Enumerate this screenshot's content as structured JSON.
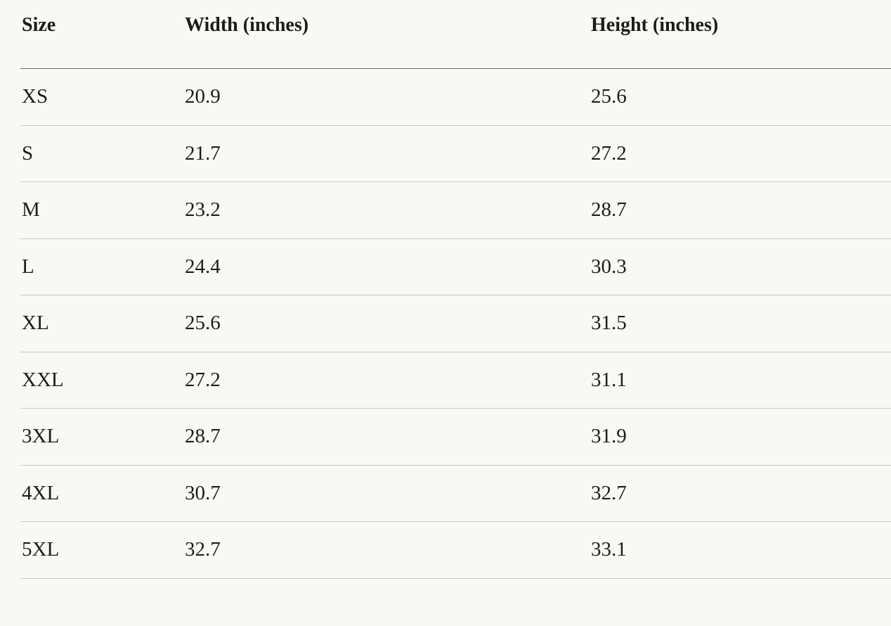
{
  "table": {
    "header": [
      "Size",
      "Width (inches)",
      "Height (inches)"
    ],
    "rows": [
      [
        "XS",
        "20.9",
        "25.6"
      ],
      [
        "S",
        "21.7",
        "27.2"
      ],
      [
        "M",
        "23.2",
        "28.7"
      ],
      [
        "L",
        "24.4",
        "30.3"
      ],
      [
        "XL",
        "25.6",
        "31.5"
      ],
      [
        "XXL",
        "27.2",
        "31.1"
      ],
      [
        "3XL",
        "28.7",
        "31.9"
      ],
      [
        "4XL",
        "30.7",
        "32.7"
      ],
      [
        "5XL",
        "32.7",
        "33.1"
      ]
    ]
  }
}
